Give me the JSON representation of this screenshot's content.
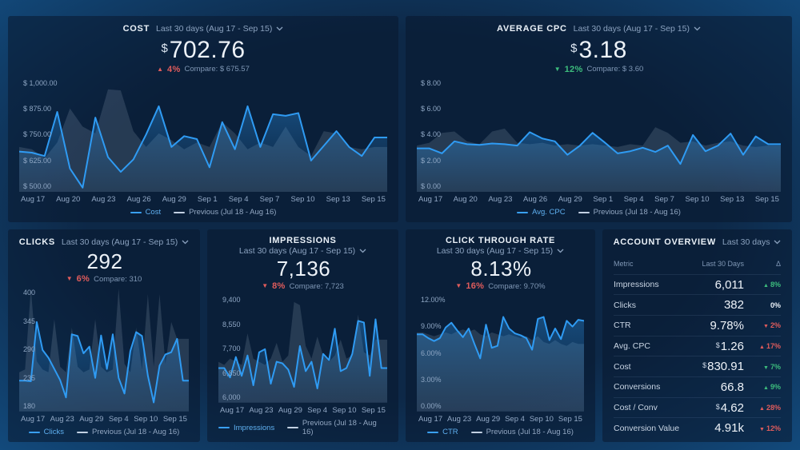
{
  "colors": {
    "line": "#2f9bf3",
    "prev_fill": "rgba(186,203,226,0.16)",
    "legend_line": "#5fb0f0",
    "red": "#e05c5c",
    "green": "#3dbd7d",
    "bg_outer": "#1f7dba",
    "bg_inner": "#0d2847",
    "panel": "rgba(9,23,45,0.55)"
  },
  "panels": {
    "cost": {
      "title": "COST",
      "period": "Last 30 days (Aug 17 - Sep 15)",
      "prefix": "$",
      "value": "702.76",
      "delta": {
        "glyph": "▲",
        "pct": "4%",
        "tone": "bad"
      },
      "compare": "Compare: $ 675.57"
    },
    "avg_cpc": {
      "title": "AVERAGE CPC",
      "period": "Last 30 days (Aug 17 - Sep 15)",
      "prefix": "$",
      "value": "3.18",
      "delta": {
        "glyph": "▼",
        "pct": "12%",
        "tone": "good"
      },
      "compare": "Compare: $ 3.60"
    },
    "clicks": {
      "title": "CLICKS",
      "period": "Last 30 days (Aug 17 - Sep 15)",
      "prefix": "",
      "value": "292",
      "delta": {
        "glyph": "▼",
        "pct": "6%",
        "tone": "bad"
      },
      "compare": "Compare: 310"
    },
    "impressions": {
      "title": "IMPRESSIONS",
      "period": "Last 30 days (Aug 17 - Sep 15)",
      "prefix": "",
      "value": "7,136",
      "delta": {
        "glyph": "▼",
        "pct": "8%",
        "tone": "bad"
      },
      "compare": "Compare: 7,723"
    },
    "ctr": {
      "title": "CLICK THROUGH RATE",
      "period": "Last 30 days (Aug 17 - Sep 15)",
      "prefix": "",
      "value": "8.13%",
      "delta": {
        "glyph": "▼",
        "pct": "16%",
        "tone": "bad"
      },
      "compare": "Compare: 9.70%"
    },
    "account": {
      "title": "ACCOUNT OVERVIEW",
      "period": "Last 30 days"
    }
  },
  "chart_data": [
    {
      "id": "cost",
      "type": "line",
      "title": "Cost – Last 30 days vs Previous",
      "ylim": [
        500,
        1000
      ],
      "y_ticks": [
        "$ 1,000.00",
        "$ 875.00",
        "$ 750.00",
        "$ 625.00",
        "$ 500.00"
      ],
      "x_ticks": [
        "Aug 17",
        "Aug 20",
        "Aug 23",
        "Aug 26",
        "Aug 29",
        "Sep 1",
        "Sep 4",
        "Sep 7",
        "Sep 10",
        "Sep 13",
        "Sep 15"
      ],
      "legend_position": "bottom",
      "grid": false,
      "series": [
        {
          "name": "Cost",
          "values": [
            680,
            675,
            660,
            855,
            605,
            520,
            830,
            655,
            590,
            645,
            755,
            880,
            700,
            748,
            735,
            610,
            810,
            690,
            880,
            700,
            845,
            838,
            850,
            640,
            705,
            770,
            700,
            660,
            742,
            742
          ]
        },
        {
          "name": "Previous (Jul 18 - Aug 16)",
          "values": [
            700,
            690,
            650,
            720,
            870,
            790,
            760,
            955,
            950,
            770,
            700,
            760,
            730,
            690,
            720,
            700,
            810,
            760,
            690,
            720,
            700,
            790,
            700,
            660,
            770,
            760,
            700,
            690,
            700,
            700
          ]
        }
      ]
    },
    {
      "id": "avg_cpc",
      "type": "line",
      "title": "Avg. CPC – Last 30 days vs Previous",
      "ylim": [
        0,
        8
      ],
      "y_ticks": [
        "$ 8.00",
        "$ 6.00",
        "$ 4.00",
        "$ 2.00",
        "$ 0.00"
      ],
      "x_ticks": [
        "Aug 17",
        "Aug 20",
        "Aug 23",
        "Aug 26",
        "Aug 29",
        "Sep 1",
        "Sep 4",
        "Sep 7",
        "Sep 10",
        "Sep 13",
        "Sep 15"
      ],
      "legend_position": "bottom",
      "grid": false,
      "series": [
        {
          "name": "Avg. CPC",
          "values": [
            3.1,
            3.1,
            2.75,
            3.6,
            3.4,
            3.35,
            3.45,
            3.4,
            3.3,
            4.25,
            3.8,
            3.6,
            2.65,
            3.3,
            4.2,
            3.5,
            2.75,
            2.9,
            3.15,
            2.85,
            3.3,
            2.0,
            4.05,
            2.9,
            3.3,
            4.15,
            2.65,
            3.95,
            3.4,
            3.4
          ]
        },
        {
          "name": "Previous (Jul 18 - Aug 16)",
          "values": [
            3.3,
            3.5,
            4.2,
            4.3,
            3.6,
            3.4,
            4.3,
            4.5,
            3.5,
            3.4,
            3.5,
            3.3,
            3.4,
            3.3,
            3.4,
            3.3,
            3.2,
            3.4,
            3.3,
            4.6,
            4.2,
            3.5,
            3.6,
            3.3,
            3.5,
            3.6,
            3.3,
            3.2,
            3.3,
            3.3
          ]
        }
      ]
    },
    {
      "id": "clicks",
      "type": "line",
      "title": "Clicks – Last 30 days vs Previous",
      "ylim": [
        180,
        400
      ],
      "y_ticks": [
        "400",
        "345",
        "290",
        "235",
        "180"
      ],
      "x_ticks": [
        "Aug 17",
        "Aug 23",
        "Aug 29",
        "Sep 4",
        "Sep 10",
        "Sep 15"
      ],
      "legend_position": "bottom",
      "grid": false,
      "series": [
        {
          "name": "Clicks",
          "values": [
            235,
            235,
            234,
            340,
            290,
            276,
            256,
            236,
            205,
            318,
            315,
            284,
            296,
            240,
            316,
            256,
            318,
            240,
            212,
            288,
            322,
            315,
            244,
            196,
            262,
            282,
            286,
            310,
            235,
            235
          ]
        },
        {
          "name": "Previous (Jul 18 - Aug 16)",
          "values": [
            250,
            255,
            400,
            270,
            255,
            250,
            345,
            260,
            250,
            330,
            260,
            250,
            255,
            345,
            260,
            250,
            255,
            400,
            265,
            250,
            330,
            255,
            390,
            260,
            390,
            265,
            340,
            310,
            310,
            310
          ]
        }
      ]
    },
    {
      "id": "impressions",
      "type": "line",
      "title": "Impressions – Last 30 days vs Previous",
      "ylim": [
        6000,
        9400
      ],
      "y_ticks": [
        "9,400",
        "8,550",
        "7,700",
        "6,850",
        "6,000"
      ],
      "x_ticks": [
        "Aug 17",
        "Aug 23",
        "Aug 29",
        "Sep 4",
        "Sep 10",
        "Sep 15"
      ],
      "legend_position": "bottom",
      "grid": false,
      "series": [
        {
          "name": "Impressions",
          "values": [
            7100,
            7100,
            6800,
            7450,
            6850,
            7500,
            6550,
            7600,
            7700,
            6600,
            7300,
            7250,
            7050,
            6500,
            7800,
            7000,
            7300,
            6450,
            7550,
            7350,
            8350,
            7000,
            7100,
            7550,
            8600,
            8550,
            6850,
            8650,
            7100,
            7100
          ]
        },
        {
          "name": "Previous (Jul 18 - Aug 16)",
          "values": [
            7300,
            7200,
            7400,
            7300,
            7200,
            8200,
            7400,
            7300,
            7200,
            7400,
            7900,
            7300,
            7500,
            9200,
            9100,
            7800,
            7400,
            8100,
            7500,
            7300,
            7500,
            8000,
            7400,
            7500,
            8800,
            7600,
            7500,
            8000,
            8000,
            8000
          ]
        }
      ]
    },
    {
      "id": "ctr",
      "type": "line",
      "title": "CTR – Last 30 days vs Previous",
      "ylim": [
        0,
        12
      ],
      "y_ticks": [
        "12.00%",
        "9.00%",
        "6.00%",
        "3.00%",
        "0.00%"
      ],
      "x_ticks": [
        "Aug 17",
        "Aug 23",
        "Aug 29",
        "Sep 4",
        "Sep 10",
        "Sep 15"
      ],
      "legend_position": "bottom",
      "grid": false,
      "series": [
        {
          "name": "CTR",
          "values": [
            8.0,
            8.0,
            7.6,
            7.3,
            7.6,
            8.7,
            9.2,
            8.4,
            7.7,
            8.6,
            7.0,
            5.5,
            9.0,
            6.6,
            6.8,
            9.8,
            8.6,
            8.1,
            7.9,
            7.6,
            6.4,
            9.6,
            9.8,
            7.4,
            8.6,
            7.5,
            9.4,
            8.8,
            9.5,
            9.4
          ]
        },
        {
          "name": "Previous (Jul 18 - Aug 16)",
          "values": [
            8.2,
            8.2,
            8.0,
            7.8,
            8.0,
            8.2,
            8.0,
            8.3,
            8.5,
            8.3,
            8.5,
            8.0,
            7.8,
            8.2,
            8.0,
            7.8,
            8.0,
            7.8,
            7.6,
            7.8,
            7.4,
            7.8,
            7.2,
            7.0,
            7.4,
            7.0,
            6.8,
            7.2,
            7.0,
            7.0
          ]
        }
      ]
    },
    {
      "id": "account_overview",
      "type": "table",
      "title": "ACCOUNT OVERVIEW",
      "headers": [
        "Metric",
        "Last 30 Days",
        "Δ"
      ],
      "rows": [
        {
          "metric": "Impressions",
          "prefix": "",
          "value": "6,011",
          "glyph": "▲",
          "delta": "8%",
          "tone": "good"
        },
        {
          "metric": "Clicks",
          "prefix": "",
          "value": "382",
          "glyph": "",
          "delta": "0%",
          "tone": "neutral"
        },
        {
          "metric": "CTR",
          "prefix": "",
          "value": "9.78%",
          "glyph": "▼",
          "delta": "2%",
          "tone": "bad"
        },
        {
          "metric": "Avg. CPC",
          "prefix": "$",
          "value": "1.26",
          "glyph": "▲",
          "delta": "17%",
          "tone": "bad"
        },
        {
          "metric": "Cost",
          "prefix": "$",
          "value": "830.91",
          "glyph": "▼",
          "delta": "7%",
          "tone": "good"
        },
        {
          "metric": "Conversions",
          "prefix": "",
          "value": "66.8",
          "glyph": "▲",
          "delta": "9%",
          "tone": "good"
        },
        {
          "metric": "Cost / Conv",
          "prefix": "$",
          "value": "4.62",
          "glyph": "▲",
          "delta": "28%",
          "tone": "bad"
        },
        {
          "metric": "Conversion Value",
          "prefix": "",
          "value": "4.91k",
          "glyph": "▼",
          "delta": "12%",
          "tone": "bad"
        }
      ]
    }
  ]
}
